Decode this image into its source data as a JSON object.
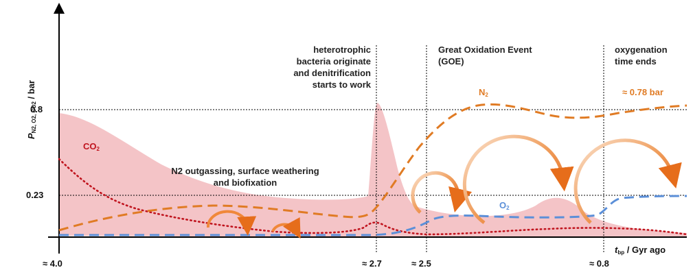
{
  "chart_data": {
    "type": "area",
    "ylabel": {
      "main": "P",
      "sub": "N2, O2, CO2",
      "unit": " / bar"
    },
    "xlabel": {
      "main": "t",
      "sub": "bp",
      "unit": " / Gyr ago"
    },
    "x_ticks": [
      "≈ 4.0",
      "≈ 2.7",
      "≈ 2.5",
      "≈ 0.8"
    ],
    "y_ticks": [
      "0.8",
      "0.23"
    ],
    "events": [
      {
        "id": "heterotrophic",
        "text": "heterotrophic bacteria originate and denitrification starts to work",
        "lines": [
          "heterotrophic",
          "bacteria originate",
          "and denitrification",
          "starts to work"
        ]
      },
      {
        "id": "goe",
        "text": "Great Oxidation Event (GOE)",
        "lines": [
          "Great Oxidation Event",
          "(GOE)"
        ]
      },
      {
        "id": "oxygenation",
        "text": "oxygenation time ends",
        "lines": [
          "oxygenation",
          "time ends"
        ]
      }
    ],
    "annotations": {
      "process": [
        "N2 outgassing, surface weathering",
        "and biofixation"
      ],
      "n2_final": "≈ 0.78 bar"
    },
    "series": [
      {
        "name": "N2",
        "style": "dashed",
        "color": "#e07b24"
      },
      {
        "name": "O2",
        "style": "dashed",
        "color": "#5b8fd8"
      },
      {
        "name": "CO2",
        "style": "dotted",
        "color": "#c0141e",
        "band_color": "#f2b8bc"
      }
    ]
  }
}
